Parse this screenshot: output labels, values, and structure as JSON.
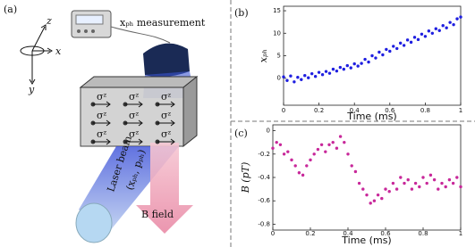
{
  "diagram": {
    "label": "(a)",
    "axis_z": "z",
    "axis_x": "x",
    "axis_y": "y",
    "device": "xₚₕ measurement",
    "spins": [
      "σᶻ",
      "σᶻ",
      "σᶻ",
      "σᶻ",
      "σᶻ",
      "σᶻ",
      "σᶻ",
      "σᶻ",
      "σᶻ"
    ],
    "beam": "Laser beam",
    "beam_vars": "(xₚₕ, pₚₕ)",
    "field": "B field"
  },
  "chart_data": [
    {
      "type": "scatter",
      "label": "(b)",
      "y_label": "xₚₕ",
      "x_label": "Time (ms)",
      "color": "#1f1fe0",
      "x": [
        0,
        0.02,
        0.04,
        0.06,
        0.08,
        0.1,
        0.12,
        0.14,
        0.16,
        0.18,
        0.2,
        0.22,
        0.24,
        0.26,
        0.28,
        0.3,
        0.32,
        0.34,
        0.36,
        0.38,
        0.4,
        0.42,
        0.44,
        0.46,
        0.48,
        0.5,
        0.52,
        0.54,
        0.56,
        0.58,
        0.6,
        0.62,
        0.64,
        0.66,
        0.68,
        0.7,
        0.72,
        0.74,
        0.76,
        0.78,
        0.8,
        0.82,
        0.84,
        0.86,
        0.88,
        0.9,
        0.92,
        0.94,
        0.96,
        0.98,
        1
      ],
      "values": [
        0.3,
        -0.5,
        0.5,
        -0.8,
        0.2,
        -0.3,
        0.6,
        0.1,
        1.0,
        0.4,
        1.3,
        0.8,
        1.5,
        1.1,
        2.0,
        1.6,
        2.4,
        2.0,
        2.8,
        2.3,
        3.2,
        2.7,
        3.3,
        4.2,
        3.6,
        5.0,
        4.5,
        5.8,
        5.2,
        6.4,
        6.0,
        7.1,
        6.6,
        7.8,
        7.3,
        8.5,
        8.0,
        9.1,
        8.6,
        9.8,
        9.3,
        10.5,
        10.0,
        11.0,
        10.6,
        11.7,
        11.2,
        12.4,
        11.9,
        13.2,
        13.6
      ],
      "xlim": [
        0,
        1
      ],
      "xticks": [
        0,
        0.2,
        0.4,
        0.6,
        0.8,
        1
      ],
      "ylim": [
        -6,
        16
      ],
      "yticks": [
        0,
        5,
        10,
        15
      ]
    },
    {
      "type": "scatter",
      "label": "(c)",
      "y_label": "B (pT)",
      "x_label": "Time (ms)",
      "color": "#c8289a",
      "x": [
        0,
        0.02,
        0.04,
        0.06,
        0.08,
        0.1,
        0.12,
        0.14,
        0.16,
        0.18,
        0.2,
        0.22,
        0.24,
        0.26,
        0.28,
        0.3,
        0.32,
        0.34,
        0.36,
        0.38,
        0.4,
        0.42,
        0.44,
        0.46,
        0.48,
        0.5,
        0.52,
        0.54,
        0.56,
        0.58,
        0.6,
        0.62,
        0.64,
        0.66,
        0.68,
        0.7,
        0.72,
        0.74,
        0.76,
        0.78,
        0.8,
        0.82,
        0.84,
        0.86,
        0.88,
        0.9,
        0.92,
        0.94,
        0.96,
        0.98,
        1
      ],
      "values": [
        -0.15,
        -0.1,
        -0.12,
        -0.2,
        -0.18,
        -0.25,
        -0.3,
        -0.36,
        -0.38,
        -0.3,
        -0.25,
        -0.2,
        -0.16,
        -0.12,
        -0.18,
        -0.12,
        -0.1,
        -0.15,
        -0.05,
        -0.1,
        -0.2,
        -0.3,
        -0.35,
        -0.45,
        -0.5,
        -0.55,
        -0.62,
        -0.6,
        -0.55,
        -0.58,
        -0.5,
        -0.52,
        -0.45,
        -0.5,
        -0.4,
        -0.45,
        -0.42,
        -0.5,
        -0.45,
        -0.48,
        -0.4,
        -0.45,
        -0.38,
        -0.42,
        -0.5,
        -0.45,
        -0.48,
        -0.42,
        -0.45,
        -0.4,
        -0.48
      ],
      "xlim": [
        0,
        1
      ],
      "xticks": [
        0,
        0.2,
        0.4,
        0.6,
        0.8,
        1
      ],
      "ylim": [
        -0.85,
        0.05
      ],
      "yticks": [
        -0.8,
        -0.6,
        -0.4,
        -0.2,
        0
      ]
    }
  ]
}
